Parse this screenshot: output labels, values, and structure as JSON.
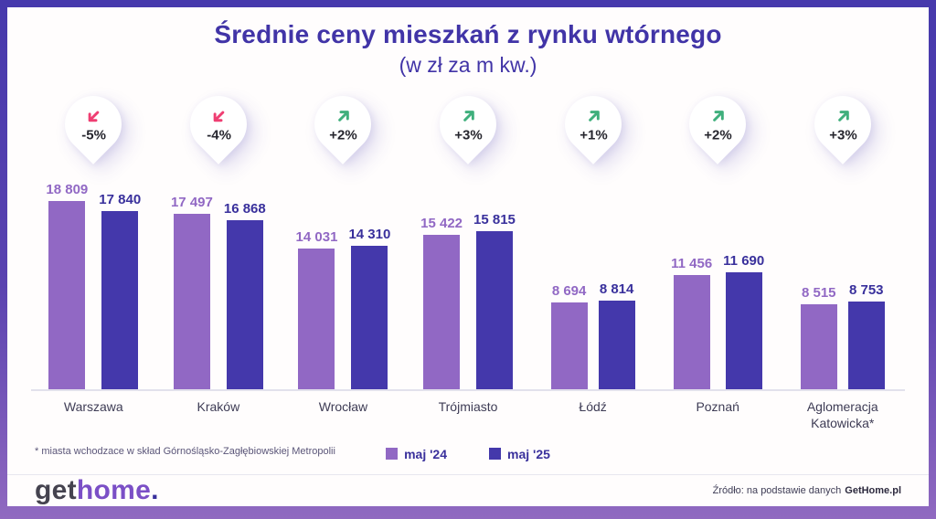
{
  "title": "Średnie ceny mieszkań z rynku wtórnego",
  "subtitle": "(w zł za m kw.)",
  "footnote": "* miasta wchodzace w skład Górnośląsko-Zagłębiowskiej Metropolii",
  "logo": {
    "part1": "get",
    "part2": "home",
    "dot": "."
  },
  "source": {
    "prefix": "Źródło: na podstawie danych",
    "brand": "GetHome.pl"
  },
  "colors": {
    "maj24": "#9168c4",
    "maj25": "#4438ab",
    "label24": "#9168c4",
    "label25": "#39309c",
    "arrow_up": "#3faf7c",
    "arrow_down": "#ef3e72",
    "title": "#4134a7"
  },
  "chart_data": {
    "type": "bar",
    "title": "Średnie ceny mieszkań z rynku wtórnego (w zł za m kw.)",
    "categories": [
      "Warszawa",
      "Kraków",
      "Wrocław",
      "Trójmiasto",
      "Łódź",
      "Poznań",
      "Aglomeracja Katowicka*"
    ],
    "series": [
      {
        "name": "maj '24",
        "color": "#9168c4",
        "values": [
          18809,
          17497,
          14031,
          15422,
          8694,
          11456,
          8515
        ]
      },
      {
        "name": "maj '25",
        "color": "#4438ab",
        "values": [
          17840,
          16868,
          14310,
          15815,
          8814,
          11690,
          8753
        ]
      }
    ],
    "changes": [
      "-5%",
      "-4%",
      "+2%",
      "+3%",
      "+1%",
      "+2%",
      "+3%"
    ],
    "ylim": [
      0,
      19000
    ],
    "grid": false,
    "value_labels": true,
    "legend_position": "bottom"
  }
}
